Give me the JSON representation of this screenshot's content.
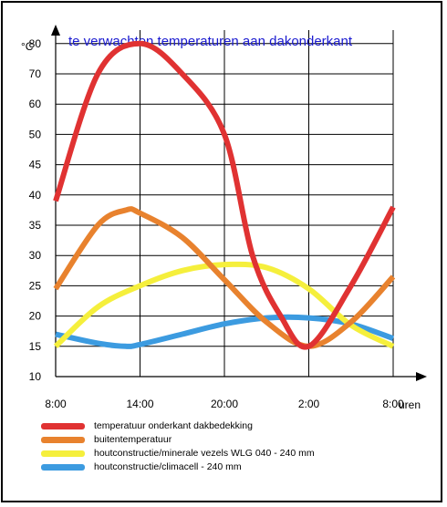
{
  "chart_data": {
    "type": "line",
    "title": "te verwachten temperaturen aan dakonderkant",
    "ylabel": "°C",
    "xlabel": "uren",
    "x_ticks": [
      "8:00",
      "14:00",
      "20:00",
      "2:00",
      "8:00"
    ],
    "y_ticks": [
      10,
      15,
      20,
      25,
      30,
      35,
      40,
      45,
      50,
      60,
      70,
      80
    ],
    "grid": true,
    "series": [
      {
        "name": "temperatuur onderkant dakbedekking",
        "color": "#e03232",
        "points": [
          [
            "8:00",
            39
          ],
          [
            "11:00",
            70
          ],
          [
            "14:00",
            80
          ],
          [
            "17:00",
            70
          ],
          [
            "20:00",
            50
          ],
          [
            "22:00",
            30
          ],
          [
            "0:00",
            20
          ],
          [
            "2:00",
            15
          ],
          [
            "5:00",
            25
          ],
          [
            "8:00",
            38
          ]
        ]
      },
      {
        "name": "buitentemperatuur",
        "color": "#e8822e",
        "points": [
          [
            "8:00",
            24.5
          ],
          [
            "11:00",
            35
          ],
          [
            "13:00",
            37.5
          ],
          [
            "14:00",
            37
          ],
          [
            "17:00",
            33
          ],
          [
            "20:00",
            26
          ],
          [
            "23:00",
            19
          ],
          [
            "2:00",
            15
          ],
          [
            "5:00",
            19
          ],
          [
            "8:00",
            26.5
          ]
        ]
      },
      {
        "name": "houtconstructie/minerale vezels WLG 040 - 240 mm",
        "color": "#f5ef3c",
        "points": [
          [
            "8:00",
            15
          ],
          [
            "11:00",
            21.5
          ],
          [
            "14:00",
            25
          ],
          [
            "17:00",
            27.5
          ],
          [
            "20:00",
            28.5
          ],
          [
            "23:00",
            28
          ],
          [
            "2:00",
            24.5
          ],
          [
            "5:00",
            18.5
          ],
          [
            "8:00",
            15
          ]
        ]
      },
      {
        "name": "houtconstructie/climacell - 240 mm",
        "color": "#3c9be0",
        "points": [
          [
            "8:00",
            17
          ],
          [
            "11:00",
            15.5
          ],
          [
            "13:00",
            15
          ],
          [
            "14:00",
            15.3
          ],
          [
            "17:00",
            17
          ],
          [
            "20:00",
            18.7
          ],
          [
            "23:00",
            19.7
          ],
          [
            "2:00",
            19.7
          ],
          [
            "5:00",
            18.7
          ],
          [
            "8:00",
            16.3
          ]
        ]
      }
    ]
  }
}
